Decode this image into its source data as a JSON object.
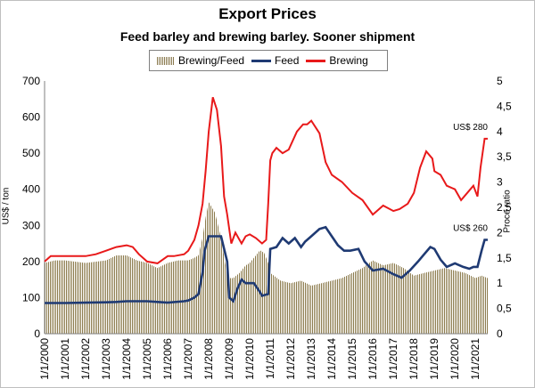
{
  "colors": {
    "feed": "#1f3a73",
    "brewing": "#e8191a",
    "ratio_fill": "#8b7a4b",
    "background": "#ffffff"
  },
  "chart_data": {
    "type": "line",
    "title": "Export Prices",
    "subtitle": "Feed barley and brewing barley. Sooner shipment",
    "ylabel": "US$ / ton",
    "y2label": "Proce ratio",
    "ylim": [
      0,
      700
    ],
    "y2lim": [
      0,
      5
    ],
    "yticks": [
      "0",
      "100",
      "200",
      "300",
      "400",
      "500",
      "600",
      "700"
    ],
    "y2ticks": [
      "0",
      "0,5",
      "1",
      "1,5",
      "2",
      "2,5",
      "3",
      "3,5",
      "4",
      "4,5",
      "5"
    ],
    "xticks": [
      "1/1/2000",
      "1/1/2001",
      "1/1/2002",
      "1/1/2003",
      "1/1/2004",
      "1/1/2005",
      "1/1/2006",
      "1/1/2007",
      "1/1/2008",
      "1/1/2009",
      "1/1/2010",
      "1/1/2011",
      "1/1/2012",
      "1/1/2013",
      "1/1/2014",
      "1/1/2015",
      "1/1/2016",
      "1/1/2017",
      "1/1/2018",
      "1/1/2019",
      "1/1/2020",
      "1/1/2021"
    ],
    "legend": [
      "Brewing/Feed",
      "Feed",
      "Brewing"
    ],
    "legend_position": "top-center",
    "grid": false,
    "annotations": [
      "US$ 280",
      "US$ 260"
    ],
    "series": [
      {
        "name": "Feed",
        "axis": "left",
        "x": [
          2000.0,
          2001.0,
          2002.0,
          2003.0,
          2003.5,
          2004.0,
          2005.0,
          2005.5,
          2006.0,
          2006.8,
          2007.0,
          2007.3,
          2007.5,
          2007.7,
          2007.8,
          2008.0,
          2008.6,
          2008.9,
          2009.0,
          2009.2,
          2009.4,
          2009.6,
          2009.8,
          2010.0,
          2010.2,
          2010.5,
          2010.6,
          2010.9,
          2011.0,
          2011.3,
          2011.6,
          2011.9,
          2012.2,
          2012.5,
          2012.7,
          2013.0,
          2013.4,
          2013.7,
          2014.0,
          2014.3,
          2014.6,
          2014.9,
          2015.3,
          2015.6,
          2016.0,
          2016.5,
          2017.0,
          2017.4,
          2017.8,
          2018.2,
          2018.5,
          2018.8,
          2019.0,
          2019.3,
          2019.6,
          2020.0,
          2020.4,
          2020.7,
          2020.9,
          2021.1,
          2021.3,
          2021.45,
          2021.6
        ],
        "values": [
          85,
          85,
          86,
          87,
          88,
          90,
          90,
          88,
          86,
          90,
          92,
          100,
          110,
          170,
          230,
          270,
          270,
          200,
          100,
          90,
          125,
          150,
          140,
          140,
          140,
          115,
          105,
          110,
          235,
          240,
          265,
          250,
          265,
          240,
          255,
          270,
          290,
          295,
          270,
          245,
          230,
          230,
          235,
          200,
          175,
          180,
          165,
          155,
          175,
          200,
          220,
          240,
          235,
          205,
          185,
          195,
          185,
          180,
          185,
          185,
          230,
          260,
          260
        ]
      },
      {
        "name": "Brewing",
        "axis": "left",
        "x": [
          2000.0,
          2000.3,
          2001.0,
          2002.0,
          2002.5,
          2003.0,
          2003.5,
          2004.0,
          2004.3,
          2004.6,
          2005.0,
          2005.5,
          2006.0,
          2006.3,
          2006.8,
          2007.0,
          2007.3,
          2007.5,
          2007.7,
          2007.85,
          2008.0,
          2008.2,
          2008.4,
          2008.6,
          2008.75,
          2008.9,
          2009.1,
          2009.3,
          2009.6,
          2009.8,
          2010.0,
          2010.3,
          2010.6,
          2010.8,
          2010.9,
          2011.0,
          2011.1,
          2011.3,
          2011.6,
          2011.9,
          2012.3,
          2012.6,
          2012.8,
          2013.0,
          2013.4,
          2013.7,
          2014.0,
          2014.5,
          2015.0,
          2015.5,
          2016.0,
          2016.5,
          2017.0,
          2017.3,
          2017.7,
          2018.0,
          2018.3,
          2018.6,
          2018.9,
          2019.0,
          2019.3,
          2019.6,
          2020.0,
          2020.3,
          2020.6,
          2020.9,
          2021.1,
          2021.25,
          2021.45,
          2021.6
        ],
        "values": [
          200,
          215,
          215,
          215,
          220,
          230,
          240,
          245,
          240,
          220,
          200,
          195,
          215,
          215,
          220,
          230,
          260,
          300,
          360,
          450,
          560,
          655,
          620,
          520,
          380,
          330,
          250,
          280,
          250,
          270,
          275,
          265,
          250,
          260,
          360,
          480,
          500,
          515,
          500,
          510,
          560,
          580,
          580,
          590,
          555,
          475,
          440,
          420,
          390,
          370,
          330,
          355,
          340,
          345,
          360,
          390,
          460,
          505,
          485,
          450,
          440,
          410,
          400,
          370,
          390,
          410,
          380,
          460,
          540,
          540
        ]
      },
      {
        "name": "Brewing/Feed",
        "axis": "right",
        "x": [
          2000.0,
          2000.5,
          2001.0,
          2002.0,
          2003.0,
          2003.5,
          2004.0,
          2004.5,
          2005.0,
          2005.5,
          2006.0,
          2006.5,
          2007.0,
          2007.3,
          2007.5,
          2007.7,
          2007.85,
          2008.0,
          2008.3,
          2008.6,
          2008.8,
          2008.95,
          2009.2,
          2009.5,
          2009.8,
          2010.0,
          2010.3,
          2010.5,
          2010.7,
          2010.9,
          2011.0,
          2011.5,
          2012.0,
          2012.5,
          2013.0,
          2013.5,
          2014.0,
          2014.5,
          2015.0,
          2015.5,
          2016.0,
          2016.5,
          2017.0,
          2017.5,
          2018.0,
          2018.5,
          2019.0,
          2019.5,
          2020.0,
          2020.5,
          2021.0,
          2021.3,
          2021.6
        ],
        "values": [
          1.4,
          1.45,
          1.45,
          1.4,
          1.45,
          1.55,
          1.55,
          1.45,
          1.4,
          1.3,
          1.4,
          1.45,
          1.45,
          1.5,
          1.55,
          1.9,
          2.3,
          2.6,
          2.4,
          1.9,
          1.4,
          1.1,
          1.1,
          1.2,
          1.35,
          1.4,
          1.55,
          1.65,
          1.6,
          1.4,
          1.2,
          1.05,
          1.0,
          1.05,
          0.95,
          1.0,
          1.05,
          1.1,
          1.2,
          1.3,
          1.45,
          1.35,
          1.4,
          1.3,
          1.15,
          1.2,
          1.25,
          1.3,
          1.25,
          1.2,
          1.1,
          1.15,
          1.1
        ]
      }
    ]
  }
}
